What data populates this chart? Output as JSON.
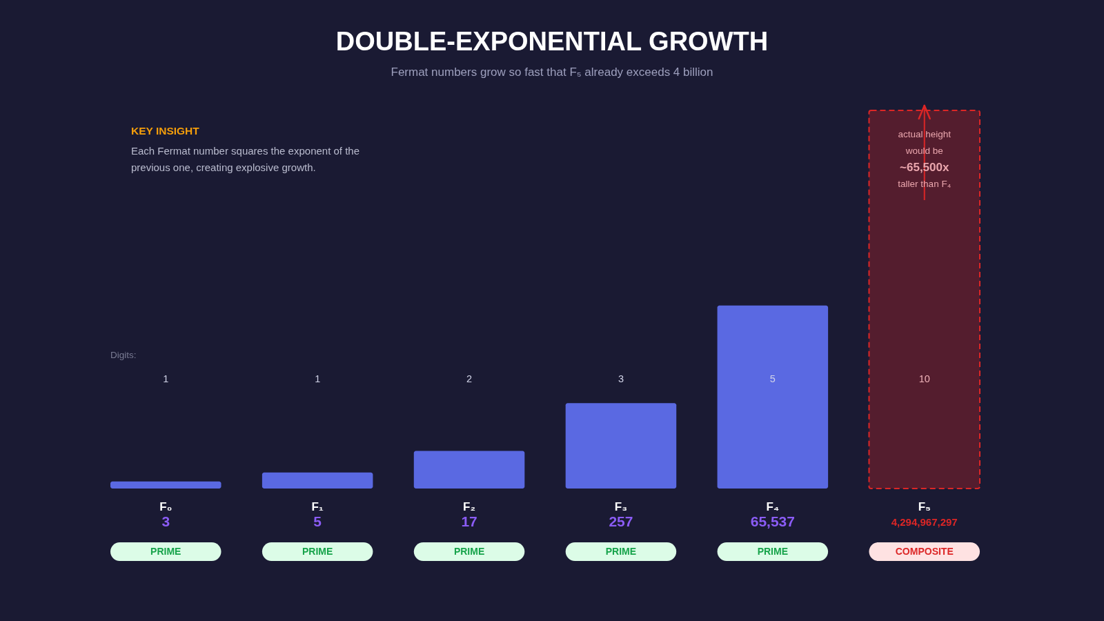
{
  "chart_data": {
    "type": "bar",
    "title": "DOUBLE-EXPONENTIAL GROWTH",
    "subtitle": "Fermat numbers grow so fast that F₅ already exceeds 4 billion",
    "categories": [
      "F₀",
      "F₁",
      "F₂",
      "F₃",
      "F₄",
      "F₅"
    ],
    "log": true,
    "ylim": [
      2,
      4294967297
    ],
    "tick_labels": "x",
    "series": [
      {
        "color": "#5a69e2",
        "values": [
          3,
          5,
          17,
          257,
          65537,
          null
        ],
        "value_labels": [
          "3",
          "5",
          "17",
          "257",
          "65,537",
          null
        ]
      },
      {
        "color": "#dc2626",
        "line_style": "dashed",
        "values": [
          null,
          null,
          null,
          null,
          null,
          4294967297
        ],
        "value_labels": [
          null,
          null,
          null,
          null,
          null,
          "4,294,967,297"
        ]
      }
    ],
    "annotations": [
      "KEY INSIGHT",
      "Each Fermat number squares the exponent of the previous one, creating explosive growth.",
      "Digits:",
      "1",
      "1",
      "2",
      "3",
      "5",
      "10",
      "PRIME",
      "PRIME",
      "PRIME",
      "PRIME",
      "PRIME",
      "COMPOSITE",
      "actual height",
      "would be",
      "~65,500x",
      "taller than F₄"
    ]
  }
}
